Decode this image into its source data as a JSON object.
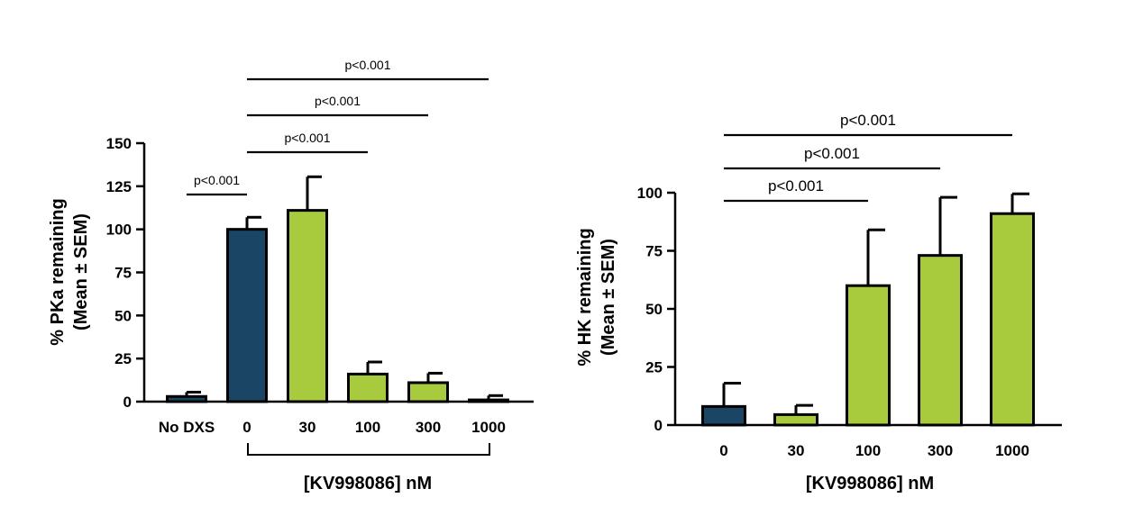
{
  "colors": {
    "control": "#1b4565",
    "treated": "#a8cb3d",
    "axis": "#000000"
  },
  "chart_data": [
    {
      "type": "bar",
      "ylabel_line1": "% PKa remaining",
      "ylabel_line2": "(Mean ± SEM)",
      "xlabel": "[KV998086] nM",
      "categories": [
        "No DXS",
        "0",
        "30",
        "100",
        "300",
        "1000"
      ],
      "values": [
        3,
        100,
        111,
        16,
        11,
        1
      ],
      "errors": [
        2.5,
        7,
        19.5,
        7,
        5.5,
        2.5
      ],
      "bar_colors": [
        "control",
        "control",
        "treated",
        "treated",
        "treated",
        "treated"
      ],
      "ylim": [
        0,
        150
      ],
      "yticks": [
        "0",
        "25",
        "50",
        "75",
        "100",
        "125",
        "150"
      ],
      "bracket_under_categories": [
        "0",
        "1000"
      ],
      "significance": [
        {
          "from": "No DXS",
          "to": "0",
          "label": "p<0.001"
        },
        {
          "from": "0",
          "to": "100",
          "label": "p<0.001"
        },
        {
          "from": "0",
          "to": "300",
          "label": "p<0.001"
        },
        {
          "from": "0",
          "to": "1000",
          "label": "p<0.001"
        }
      ]
    },
    {
      "type": "bar",
      "ylabel_line1": "% HK remaining",
      "ylabel_line2": "(Mean ± SEM)",
      "xlabel": "[KV998086] nM",
      "categories": [
        "0",
        "30",
        "100",
        "300",
        "1000"
      ],
      "values": [
        8,
        4.5,
        60,
        73,
        91
      ],
      "errors": [
        10,
        4,
        24,
        25,
        8.5
      ],
      "bar_colors": [
        "control",
        "treated",
        "treated",
        "treated",
        "treated"
      ],
      "ylim": [
        0,
        110
      ],
      "yticks": [
        "0",
        "25",
        "50",
        "75",
        "100"
      ],
      "significance": [
        {
          "from": "0",
          "to": "100",
          "label": "p<0.001"
        },
        {
          "from": "0",
          "to": "300",
          "label": "p<0.001"
        },
        {
          "from": "0",
          "to": "1000",
          "label": "p<0.001"
        }
      ]
    }
  ]
}
